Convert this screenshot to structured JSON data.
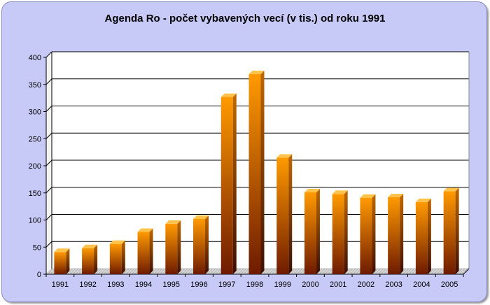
{
  "chart_data": {
    "type": "bar",
    "title": "Agenda Ro - počet vybavených vecí (v tis.) od roku 1991",
    "xlabel": "",
    "ylabel": "",
    "categories": [
      "1991",
      "1992",
      "1993",
      "1994",
      "1995",
      "1996",
      "1997",
      "1998",
      "1999",
      "2000",
      "2001",
      "2002",
      "2003",
      "2004",
      "2005"
    ],
    "values": [
      41,
      48,
      56,
      78,
      93,
      102,
      327,
      369,
      215,
      151,
      148,
      141,
      142,
      133,
      153
    ],
    "ylim": [
      0,
      400
    ],
    "yticks": [
      0,
      50,
      100,
      150,
      200,
      250,
      300,
      350,
      400
    ],
    "grid": true,
    "colors": {
      "bar_top": "#ff9a00",
      "bar_bottom": "#6e1a00",
      "plot_bg": "#ffffff",
      "panel_bg": "#c7c9f7"
    }
  }
}
